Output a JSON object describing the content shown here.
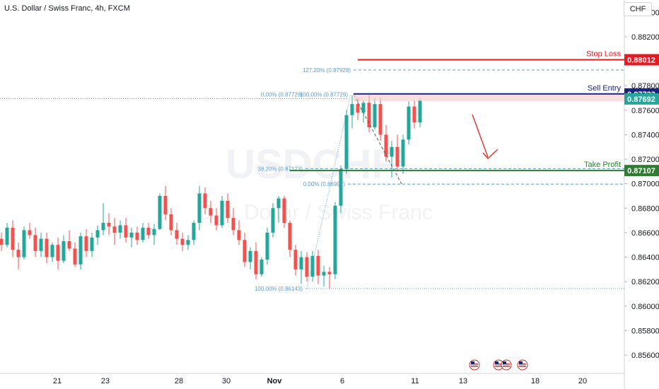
{
  "header": {
    "title": "U.S. Dollar / Swiss Franc, 4h, FXCM",
    "currency": "CHF"
  },
  "watermark": {
    "symbol": "USDCHF",
    "name": "U.S. Dollar / Swiss Franc"
  },
  "colors": {
    "up": "#26a69a",
    "down": "#ef5350",
    "fib": "#5b9bd5",
    "stop": "#e31b23",
    "entry": "#1a237e",
    "entry_zone": "#f5c6cb",
    "target": "#2e7d32",
    "arrow": "#e53935",
    "grid": "#eef0f3"
  },
  "chart_data": {
    "type": "candlestick",
    "symbol": "USDCHF",
    "timeframe": "4h",
    "ylim": [
      0.8545,
      0.885
    ],
    "y_ticks": [
      "0.88400",
      "0.88200",
      "0.88000",
      "0.87800",
      "0.87600",
      "0.87400",
      "0.87200",
      "0.87000",
      "0.86800",
      "0.86600",
      "0.86400",
      "0.86200",
      "0.86000",
      "0.85800",
      "0.85600"
    ],
    "x_ticks": [
      "21",
      "23",
      "28",
      "30",
      "Nov",
      "6",
      "11",
      "13",
      "18",
      "20"
    ],
    "candles": [
      [
        0.8655,
        0.866,
        0.8645,
        0.865
      ],
      [
        0.865,
        0.8668,
        0.8648,
        0.8664
      ],
      [
        0.8664,
        0.867,
        0.864,
        0.8646
      ],
      [
        0.8646,
        0.8652,
        0.863,
        0.864
      ],
      [
        0.864,
        0.8665,
        0.8638,
        0.8662
      ],
      [
        0.8662,
        0.8668,
        0.8655,
        0.8658
      ],
      [
        0.8658,
        0.8664,
        0.864,
        0.8645
      ],
      [
        0.8645,
        0.866,
        0.864,
        0.8655
      ],
      [
        0.8655,
        0.866,
        0.8635,
        0.864
      ],
      [
        0.864,
        0.8652,
        0.8636,
        0.865
      ],
      [
        0.865,
        0.8656,
        0.863,
        0.8637
      ],
      [
        0.8637,
        0.8658,
        0.8635,
        0.8653
      ],
      [
        0.8653,
        0.8662,
        0.8645,
        0.8647
      ],
      [
        0.8647,
        0.8652,
        0.8632,
        0.8634
      ],
      [
        0.8634,
        0.866,
        0.863,
        0.8657
      ],
      [
        0.8657,
        0.8663,
        0.864,
        0.8645
      ],
      [
        0.8645,
        0.866,
        0.864,
        0.8656
      ],
      [
        0.8656,
        0.8666,
        0.865,
        0.8662
      ],
      [
        0.8662,
        0.8684,
        0.8658,
        0.8668
      ],
      [
        0.8668,
        0.8676,
        0.8658,
        0.8665
      ],
      [
        0.8665,
        0.8672,
        0.865,
        0.866
      ],
      [
        0.866,
        0.867,
        0.8655,
        0.8666
      ],
      [
        0.8666,
        0.8672,
        0.8652,
        0.8656
      ],
      [
        0.8656,
        0.8664,
        0.8648,
        0.866
      ],
      [
        0.866,
        0.8665,
        0.865,
        0.8654
      ],
      [
        0.8654,
        0.8668,
        0.8652,
        0.8664
      ],
      [
        0.8664,
        0.8668,
        0.8655,
        0.8658
      ],
      [
        0.8658,
        0.8667,
        0.865,
        0.8663
      ],
      [
        0.8663,
        0.8692,
        0.8662,
        0.869
      ],
      [
        0.869,
        0.8698,
        0.867,
        0.8675
      ],
      [
        0.8675,
        0.868,
        0.8658,
        0.8662
      ],
      [
        0.8662,
        0.8668,
        0.865,
        0.8655
      ],
      [
        0.8655,
        0.866,
        0.8645,
        0.865
      ],
      [
        0.865,
        0.8658,
        0.8646,
        0.8654
      ],
      [
        0.8654,
        0.867,
        0.865,
        0.8668
      ],
      [
        0.8668,
        0.8698,
        0.8662,
        0.8692
      ],
      [
        0.8692,
        0.8697,
        0.8675,
        0.868
      ],
      [
        0.868,
        0.8686,
        0.8668,
        0.8674
      ],
      [
        0.8674,
        0.868,
        0.8662,
        0.8666
      ],
      [
        0.8666,
        0.869,
        0.8664,
        0.8686
      ],
      [
        0.8686,
        0.8692,
        0.8668,
        0.8672
      ],
      [
        0.8672,
        0.868,
        0.8658,
        0.8662
      ],
      [
        0.8662,
        0.867,
        0.865,
        0.8654
      ],
      [
        0.8654,
        0.866,
        0.8632,
        0.8636
      ],
      [
        0.8636,
        0.8648,
        0.863,
        0.8645
      ],
      [
        0.8645,
        0.8652,
        0.8622,
        0.8626
      ],
      [
        0.8626,
        0.864,
        0.8624,
        0.8638
      ],
      [
        0.8638,
        0.8664,
        0.8634,
        0.866
      ],
      [
        0.866,
        0.8684,
        0.8656,
        0.868
      ],
      [
        0.868,
        0.869,
        0.8668,
        0.8688
      ],
      [
        0.8688,
        0.869,
        0.8664,
        0.8668
      ],
      [
        0.8668,
        0.867,
        0.864,
        0.8646
      ],
      [
        0.8646,
        0.865,
        0.8625,
        0.863
      ],
      [
        0.863,
        0.8645,
        0.8618,
        0.864
      ],
      [
        0.864,
        0.8644,
        0.862,
        0.8624
      ],
      [
        0.8624,
        0.8645,
        0.862,
        0.8641
      ],
      [
        0.8641,
        0.8646,
        0.8618,
        0.8625
      ],
      [
        0.8625,
        0.8633,
        0.8616,
        0.8628
      ],
      [
        0.8628,
        0.8632,
        0.8614,
        0.8626
      ],
      [
        0.8626,
        0.8685,
        0.8622,
        0.8682
      ],
      [
        0.8682,
        0.8715,
        0.8676,
        0.8712
      ],
      [
        0.8712,
        0.876,
        0.8708,
        0.8756
      ],
      [
        0.8756,
        0.8772,
        0.8745,
        0.8765
      ],
      [
        0.8765,
        0.877,
        0.8752,
        0.8758
      ],
      [
        0.8758,
        0.8768,
        0.875,
        0.8766
      ],
      [
        0.8766,
        0.8772,
        0.8742,
        0.8746
      ],
      [
        0.8746,
        0.877,
        0.8744,
        0.8765
      ],
      [
        0.8765,
        0.877,
        0.8735,
        0.874
      ],
      [
        0.874,
        0.8748,
        0.8718,
        0.8722
      ],
      [
        0.8722,
        0.8735,
        0.8705,
        0.873
      ],
      [
        0.873,
        0.874,
        0.871,
        0.8714
      ],
      [
        0.8714,
        0.874,
        0.8708,
        0.8736
      ],
      [
        0.8736,
        0.8767,
        0.8732,
        0.8763
      ],
      [
        0.8763,
        0.8768,
        0.8745,
        0.875
      ],
      [
        0.875,
        0.877,
        0.8746,
        0.8768
      ]
    ],
    "fib_levels": [
      {
        "label": "127.20% (0.87928)",
        "value": 0.87928
      },
      {
        "label": "0.00% (0.87729)",
        "value": 0.87729
      },
      {
        "label": "100.00% (0.87729)",
        "value": 0.87729
      },
      {
        "label": "38.20% (0.87123)",
        "value": 0.87123
      },
      {
        "label": "0.00% (0.86997)",
        "value": 0.86997
      },
      {
        "label": "100.00% (0.86143)",
        "value": 0.86143
      }
    ],
    "levels": {
      "stop_loss": {
        "label": "Stop Loss",
        "value": 0.88012,
        "tag": "0.88012"
      },
      "sell_entry": {
        "label": "Sell Entry",
        "value": 0.87733,
        "tag": "0.87733"
      },
      "current": {
        "value": 0.87692,
        "tag": "0.87692"
      },
      "take_profit": {
        "label": "Take Profit",
        "value": 0.87107,
        "tag": "0.87107"
      }
    },
    "events": [
      "us-flag-icon",
      "us-flag-icon",
      "us-flag-icon",
      "us-flag-icon"
    ]
  }
}
